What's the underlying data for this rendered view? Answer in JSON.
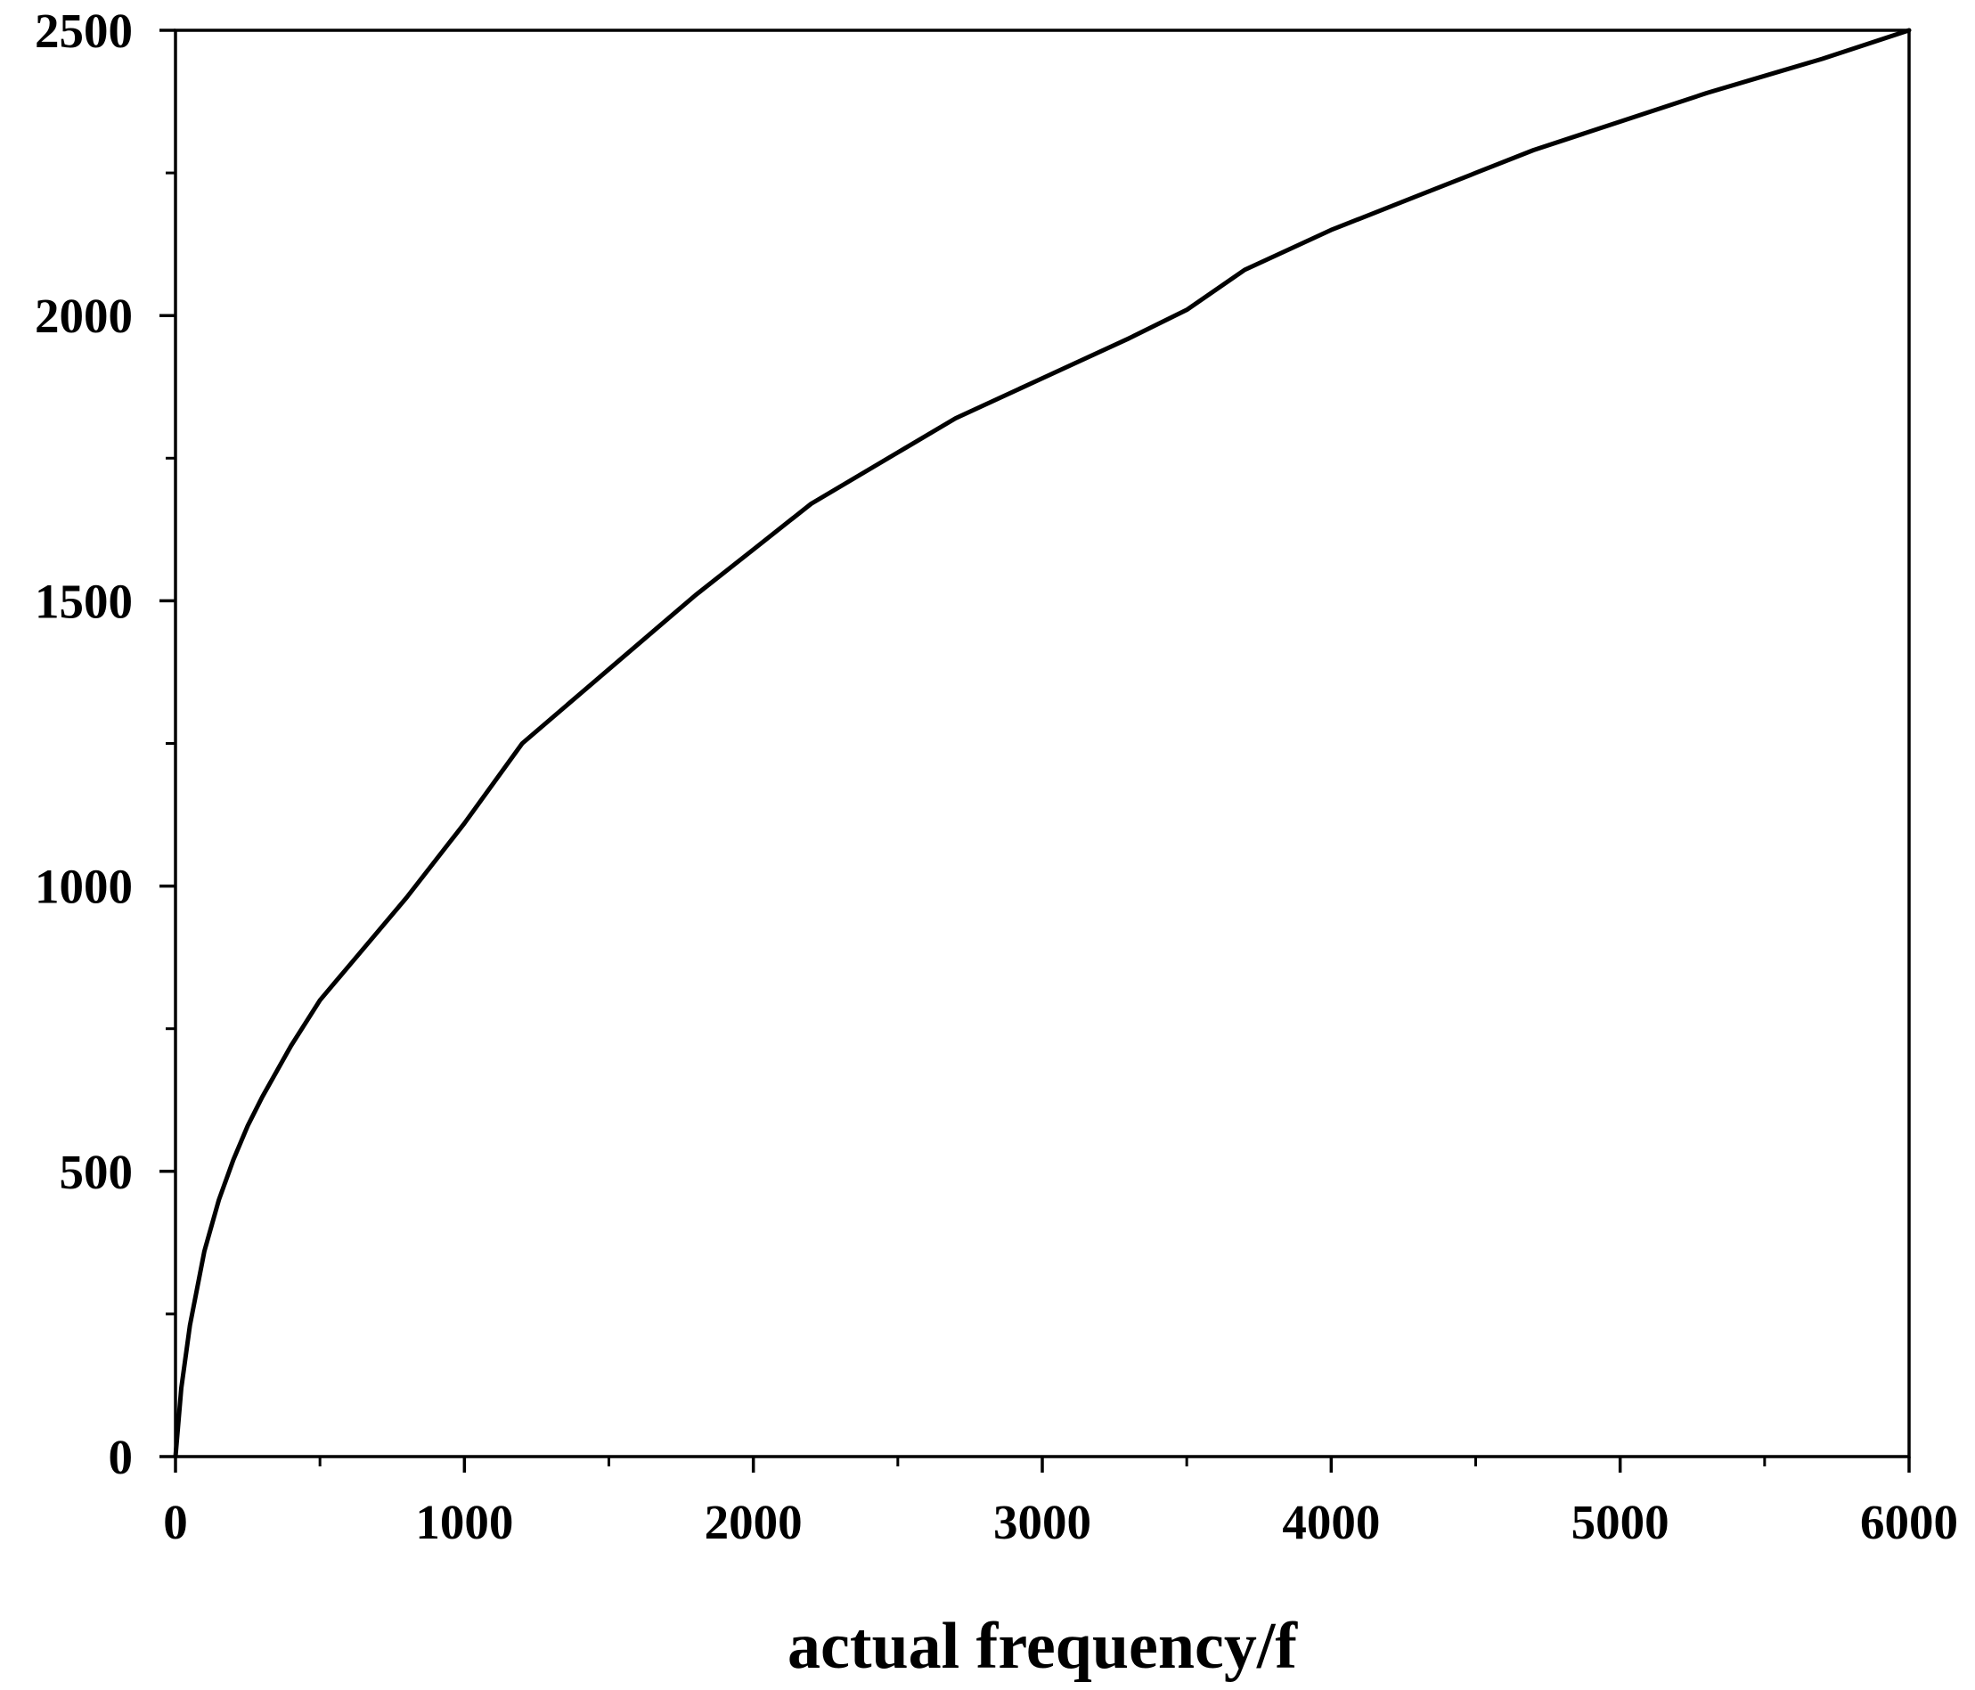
{
  "chart_data": {
    "type": "line",
    "title": "",
    "xlabel": "actual frequency/f",
    "ylabel": "",
    "xlim": [
      0,
      6000
    ],
    "ylim": [
      0,
      2500
    ],
    "x_ticks": [
      "0",
      "1000",
      "2000",
      "3000",
      "4000",
      "5000",
      "6000"
    ],
    "y_ticks": [
      "0",
      "500",
      "1000",
      "1500",
      "2000",
      "2500"
    ],
    "grid": false,
    "legend": "none",
    "line_color": "#000000",
    "series": [
      {
        "x": [
          0,
          20,
          50,
          100,
          150,
          200,
          250,
          300,
          400,
          500,
          600,
          800,
          1000,
          1200,
          1500,
          1800,
          2000,
          2200,
          2500,
          2700,
          3000,
          3300,
          3500,
          3700,
          4000,
          4300,
          4500,
          4700,
          5000,
          5300,
          5500,
          5700,
          6000
        ],
        "y": [
          0,
          120,
          230,
          360,
          450,
          520,
          580,
          630,
          720,
          800,
          860,
          980,
          1110,
          1250,
          1380,
          1510,
          1590,
          1670,
          1760,
          1820,
          1890,
          1960,
          2010,
          2080,
          2150,
          2210,
          2250,
          2290,
          2340,
          2390,
          2420,
          2450,
          2500
        ]
      }
    ]
  }
}
